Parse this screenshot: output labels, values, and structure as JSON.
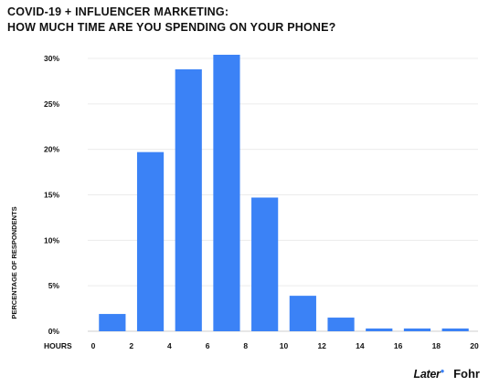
{
  "header": {
    "title_line1": "COVID-19 + INFLUENCER MARKETING:",
    "title_line2": "HOW MUCH TIME ARE YOU SPENDING ON YOUR PHONE?"
  },
  "logos": {
    "later": "Later",
    "fohr": "Fohr"
  },
  "chart_data": {
    "type": "bar",
    "title": "COVID-19 + INFLUENCER MARKETING: HOW MUCH TIME ARE YOU SPENDING ON YOUR PHONE?",
    "xlabel": "HOURS",
    "ylabel": "PERCENTAGE OF RESPONDENTS",
    "x": [
      1,
      3,
      5,
      7,
      9,
      11,
      13,
      15,
      17,
      19
    ],
    "values": [
      1.9,
      19.7,
      28.8,
      30.4,
      14.7,
      3.9,
      1.5,
      0.3,
      0.3,
      0.3
    ],
    "xlim": [
      0,
      20
    ],
    "ylim": [
      0,
      30
    ],
    "xticks": [
      "0",
      "2",
      "4",
      "6",
      "8",
      "10",
      "12",
      "14",
      "16",
      "18",
      "20"
    ],
    "yticks": [
      "0%",
      "5%",
      "10%",
      "15%",
      "20%",
      "25%",
      "30%"
    ],
    "grid": true,
    "bar_color": "#3b82f6"
  }
}
